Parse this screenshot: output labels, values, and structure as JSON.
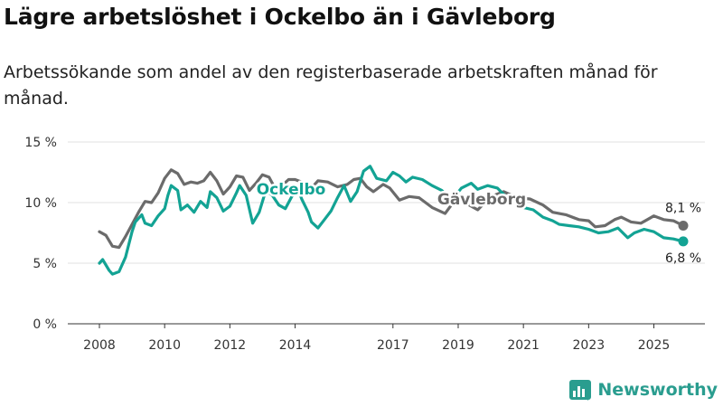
{
  "title": "Lägre arbetslöshet i Ockelbo än i Gävleborg",
  "subtitle": "Arbetssökande som andel av den registerbaserade arbetskraften månad för månad.",
  "brand": {
    "name": "Newsworthy",
    "color": "#2a9d8f"
  },
  "chart_data": {
    "type": "line",
    "title": "Lägre arbetslöshet i Ockelbo än i Gävleborg",
    "xlabel": "",
    "ylabel": "",
    "x_range": [
      2007.5,
      2026.6
    ],
    "ylim": [
      0,
      15
    ],
    "y_ticks": [
      0,
      5,
      10,
      15
    ],
    "y_tick_labels": [
      "0 %",
      "5 %",
      "10 %",
      "15 %"
    ],
    "x_ticks": [
      2008,
      2010,
      2012,
      2014,
      2017,
      2019,
      2021,
      2023,
      2025
    ],
    "x_tick_labels": [
      "2008",
      "2010",
      "2012",
      "2014",
      "2017",
      "2019",
      "2021",
      "2023",
      "2025"
    ],
    "grid": true,
    "series": [
      {
        "name": "Gävleborg",
        "color": "#6b6b6b",
        "end_label": "8,1 %",
        "points": [
          [
            2008.0,
            7.6
          ],
          [
            2008.2,
            7.3
          ],
          [
            2008.4,
            6.4
          ],
          [
            2008.6,
            6.3
          ],
          [
            2008.8,
            7.2
          ],
          [
            2009.0,
            8.2
          ],
          [
            2009.2,
            9.2
          ],
          [
            2009.4,
            10.1
          ],
          [
            2009.6,
            10.0
          ],
          [
            2009.8,
            10.8
          ],
          [
            2010.0,
            12.0
          ],
          [
            2010.2,
            12.7
          ],
          [
            2010.4,
            12.4
          ],
          [
            2010.6,
            11.5
          ],
          [
            2010.8,
            11.7
          ],
          [
            2011.0,
            11.6
          ],
          [
            2011.2,
            11.8
          ],
          [
            2011.4,
            12.5
          ],
          [
            2011.6,
            11.8
          ],
          [
            2011.8,
            10.7
          ],
          [
            2012.0,
            11.3
          ],
          [
            2012.2,
            12.2
          ],
          [
            2012.4,
            12.1
          ],
          [
            2012.6,
            11.0
          ],
          [
            2012.8,
            11.6
          ],
          [
            2013.0,
            12.3
          ],
          [
            2013.2,
            12.1
          ],
          [
            2013.4,
            11.1
          ],
          [
            2013.6,
            11.4
          ],
          [
            2013.8,
            11.9
          ],
          [
            2014.0,
            11.9
          ],
          [
            2014.2,
            11.7
          ],
          [
            2014.4,
            10.9
          ],
          [
            2014.7,
            11.8
          ],
          [
            2015.0,
            11.7
          ],
          [
            2015.3,
            11.3
          ],
          [
            2015.6,
            11.5
          ],
          [
            2015.8,
            11.9
          ],
          [
            2016.0,
            12.0
          ],
          [
            2016.2,
            11.3
          ],
          [
            2016.4,
            10.9
          ],
          [
            2016.7,
            11.5
          ],
          [
            2016.9,
            11.2
          ],
          [
            2017.2,
            10.2
          ],
          [
            2017.5,
            10.5
          ],
          [
            2017.8,
            10.4
          ],
          [
            2018.2,
            9.6
          ],
          [
            2018.6,
            9.1
          ],
          [
            2018.9,
            10.2
          ],
          [
            2019.2,
            10.0
          ],
          [
            2019.6,
            9.4
          ],
          [
            2020.0,
            10.5
          ],
          [
            2020.4,
            10.9
          ],
          [
            2020.8,
            10.4
          ],
          [
            2021.2,
            10.3
          ],
          [
            2021.6,
            9.8
          ],
          [
            2021.9,
            9.2
          ],
          [
            2022.3,
            9.0
          ],
          [
            2022.7,
            8.6
          ],
          [
            2023.0,
            8.5
          ],
          [
            2023.2,
            8.0
          ],
          [
            2023.5,
            8.1
          ],
          [
            2023.8,
            8.6
          ],
          [
            2024.0,
            8.8
          ],
          [
            2024.3,
            8.4
          ],
          [
            2024.6,
            8.3
          ],
          [
            2024.8,
            8.6
          ],
          [
            2025.0,
            8.9
          ],
          [
            2025.3,
            8.6
          ],
          [
            2025.6,
            8.5
          ],
          [
            2025.9,
            8.1
          ]
        ]
      },
      {
        "name": "Ockelbo",
        "color": "#13a394",
        "end_label": "6,8 %",
        "points": [
          [
            2008.0,
            5.0
          ],
          [
            2008.1,
            5.3
          ],
          [
            2008.3,
            4.4
          ],
          [
            2008.4,
            4.1
          ],
          [
            2008.6,
            4.3
          ],
          [
            2008.8,
            5.5
          ],
          [
            2009.0,
            7.6
          ],
          [
            2009.1,
            8.4
          ],
          [
            2009.3,
            9.0
          ],
          [
            2009.4,
            8.3
          ],
          [
            2009.6,
            8.1
          ],
          [
            2009.8,
            8.9
          ],
          [
            2010.0,
            9.5
          ],
          [
            2010.1,
            10.6
          ],
          [
            2010.2,
            11.4
          ],
          [
            2010.4,
            11.0
          ],
          [
            2010.5,
            9.4
          ],
          [
            2010.7,
            9.8
          ],
          [
            2010.9,
            9.2
          ],
          [
            2011.1,
            10.1
          ],
          [
            2011.3,
            9.6
          ],
          [
            2011.4,
            10.9
          ],
          [
            2011.6,
            10.4
          ],
          [
            2011.8,
            9.3
          ],
          [
            2012.0,
            9.7
          ],
          [
            2012.2,
            10.8
          ],
          [
            2012.3,
            11.4
          ],
          [
            2012.5,
            10.6
          ],
          [
            2012.7,
            8.3
          ],
          [
            2012.9,
            9.2
          ],
          [
            2013.1,
            11.0
          ],
          [
            2013.3,
            10.6
          ],
          [
            2013.5,
            9.8
          ],
          [
            2013.7,
            9.5
          ],
          [
            2013.9,
            10.5
          ],
          [
            2014.1,
            11.1
          ],
          [
            2014.2,
            10.3
          ],
          [
            2014.4,
            9.2
          ],
          [
            2014.5,
            8.4
          ],
          [
            2014.7,
            7.9
          ],
          [
            2014.9,
            8.6
          ],
          [
            2015.1,
            9.3
          ],
          [
            2015.3,
            10.4
          ],
          [
            2015.5,
            11.4
          ],
          [
            2015.7,
            10.1
          ],
          [
            2015.9,
            10.9
          ],
          [
            2016.1,
            12.6
          ],
          [
            2016.3,
            13.0
          ],
          [
            2016.5,
            12.0
          ],
          [
            2016.8,
            11.8
          ],
          [
            2017.0,
            12.5
          ],
          [
            2017.2,
            12.2
          ],
          [
            2017.4,
            11.7
          ],
          [
            2017.6,
            12.1
          ],
          [
            2017.9,
            11.9
          ],
          [
            2018.2,
            11.4
          ],
          [
            2018.5,
            11.0
          ],
          [
            2018.8,
            10.2
          ],
          [
            2019.1,
            11.2
          ],
          [
            2019.4,
            11.6
          ],
          [
            2019.6,
            11.1
          ],
          [
            2019.9,
            11.4
          ],
          [
            2020.2,
            11.2
          ],
          [
            2020.5,
            10.4
          ],
          [
            2020.8,
            10.1
          ],
          [
            2021.0,
            9.6
          ],
          [
            2021.3,
            9.4
          ],
          [
            2021.6,
            8.8
          ],
          [
            2021.9,
            8.5
          ],
          [
            2022.1,
            8.2
          ],
          [
            2022.4,
            8.1
          ],
          [
            2022.7,
            8.0
          ],
          [
            2023.0,
            7.8
          ],
          [
            2023.3,
            7.5
          ],
          [
            2023.6,
            7.6
          ],
          [
            2023.9,
            7.9
          ],
          [
            2024.2,
            7.1
          ],
          [
            2024.4,
            7.5
          ],
          [
            2024.7,
            7.8
          ],
          [
            2025.0,
            7.6
          ],
          [
            2025.3,
            7.1
          ],
          [
            2025.6,
            7.0
          ],
          [
            2025.9,
            6.8
          ]
        ]
      }
    ]
  }
}
